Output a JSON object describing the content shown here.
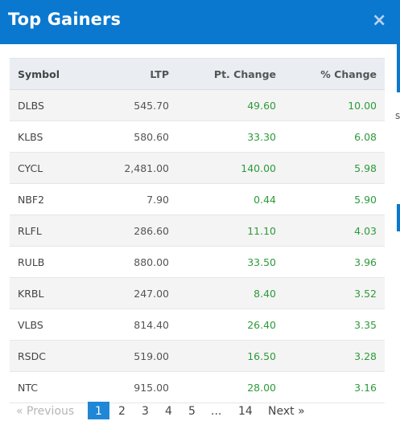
{
  "modal": {
    "title": "Top Gainers",
    "close_label": "×"
  },
  "table": {
    "columns": [
      "Symbol",
      "LTP",
      "Pt. Change",
      "% Change"
    ],
    "rows": [
      [
        "DLBS",
        "545.70",
        "49.60",
        "10.00"
      ],
      [
        "KLBS",
        "580.60",
        "33.30",
        "6.08"
      ],
      [
        "CYCL",
        "2,481.00",
        "140.00",
        "5.98"
      ],
      [
        "NBF2",
        "7.90",
        "0.44",
        "5.90"
      ],
      [
        "RLFL",
        "286.60",
        "11.10",
        "4.03"
      ],
      [
        "RULB",
        "880.00",
        "33.50",
        "3.96"
      ],
      [
        "KRBL",
        "247.00",
        "8.40",
        "3.52"
      ],
      [
        "VLBS",
        "814.40",
        "26.40",
        "3.35"
      ],
      [
        "RSDC",
        "519.00",
        "16.50",
        "3.28"
      ],
      [
        "NTC",
        "915.00",
        "28.00",
        "3.16"
      ]
    ]
  },
  "pagination": {
    "prev_label": "« Previous",
    "pages": [
      "1",
      "2",
      "3",
      "4",
      "5",
      "...",
      "14"
    ],
    "next_label": "Next »",
    "current": "1"
  },
  "colors": {
    "header": "#0b78cf",
    "positive": "#2e9b3a",
    "active_page": "#1f87d6"
  },
  "background": {
    "partial_char": "s"
  }
}
